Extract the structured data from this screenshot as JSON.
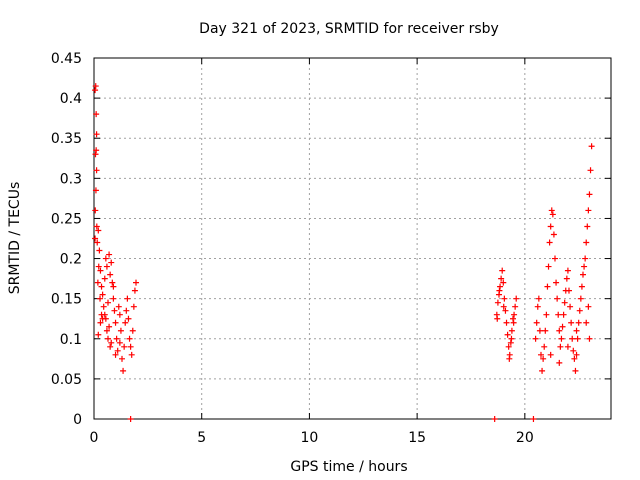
{
  "chart_data": {
    "type": "scatter",
    "title": "Day 321 of 2023, SRMTID for receiver rsby",
    "xlabel": "GPS time / hours",
    "ylabel": "SRMTID / TECUs",
    "xlim": [
      0,
      24
    ],
    "ylim": [
      0,
      0.45
    ],
    "xticks": [
      0,
      5,
      10,
      15,
      20
    ],
    "yticks": [
      0,
      0.05,
      0.1,
      0.15,
      0.2,
      0.25,
      0.3,
      0.35,
      0.4,
      0.45
    ],
    "xtick_labels": [
      "0",
      "5",
      "10",
      "15",
      "20"
    ],
    "ytick_labels": [
      "0",
      "0.05",
      "0.1",
      "0.15",
      "0.2",
      "0.25",
      "0.3",
      "0.35",
      "0.4",
      "0.45"
    ],
    "grid": true,
    "marker": "plus",
    "color": "#ff0000",
    "series": [
      {
        "points": [
          [
            0.05,
            0.41
          ],
          [
            0.08,
            0.415
          ],
          [
            0.1,
            0.38
          ],
          [
            0.12,
            0.355
          ],
          [
            0.1,
            0.335
          ],
          [
            0.07,
            0.33
          ],
          [
            0.12,
            0.31
          ],
          [
            0.09,
            0.285
          ],
          [
            0.06,
            0.26
          ],
          [
            0.13,
            0.24
          ],
          [
            0.05,
            0.225
          ],
          [
            0.15,
            0.22
          ],
          [
            0.2,
            0.235
          ],
          [
            0.25,
            0.21
          ],
          [
            0.22,
            0.19
          ],
          [
            0.3,
            0.185
          ],
          [
            0.18,
            0.17
          ],
          [
            0.35,
            0.165
          ],
          [
            0.28,
            0.15
          ],
          [
            0.4,
            0.155
          ],
          [
            0.45,
            0.14
          ],
          [
            0.5,
            0.13
          ],
          [
            0.3,
            0.12
          ],
          [
            0.55,
            0.125
          ],
          [
            0.6,
            0.11
          ],
          [
            0.2,
            0.105
          ],
          [
            0.65,
            0.1
          ],
          [
            0.7,
            0.115
          ],
          [
            0.75,
            0.09
          ],
          [
            0.8,
            0.095
          ],
          [
            0.55,
            0.2
          ],
          [
            0.6,
            0.19
          ],
          [
            0.7,
            0.205
          ],
          [
            0.75,
            0.18
          ],
          [
            0.8,
            0.195
          ],
          [
            0.85,
            0.17
          ],
          [
            0.9,
            0.15
          ],
          [
            0.95,
            0.135
          ],
          [
            1.0,
            0.12
          ],
          [
            1.05,
            0.1
          ],
          [
            1.1,
            0.085
          ],
          [
            1.15,
            0.14
          ],
          [
            1.2,
            0.13
          ],
          [
            1.25,
            0.11
          ],
          [
            1.3,
            0.075
          ],
          [
            1.35,
            0.06
          ],
          [
            1.4,
            0.09
          ],
          [
            1.45,
            0.12
          ],
          [
            1.5,
            0.135
          ],
          [
            1.55,
            0.15
          ],
          [
            1.6,
            0.125
          ],
          [
            1.65,
            0.1
          ],
          [
            1.7,
            0.09
          ],
          [
            1.75,
            0.08
          ],
          [
            1.8,
            0.11
          ],
          [
            1.85,
            0.14
          ],
          [
            1.9,
            0.16
          ],
          [
            1.95,
            0.17
          ],
          [
            0.4,
            0.125
          ],
          [
            0.9,
            0.165
          ],
          [
            1.0,
            0.08
          ],
          [
            0.35,
            0.13
          ],
          [
            1.2,
            0.095
          ],
          [
            0.65,
            0.145
          ],
          [
            0.5,
            0.175
          ]
        ]
      },
      {
        "points": [
          [
            18.7,
            0.13
          ],
          [
            18.75,
            0.145
          ],
          [
            18.8,
            0.155
          ],
          [
            18.85,
            0.165
          ],
          [
            18.9,
            0.175
          ],
          [
            18.95,
            0.185
          ],
          [
            19.0,
            0.17
          ],
          [
            19.05,
            0.15
          ],
          [
            18.72,
            0.125
          ],
          [
            19.1,
            0.135
          ],
          [
            19.15,
            0.12
          ],
          [
            19.2,
            0.105
          ],
          [
            19.25,
            0.09
          ],
          [
            19.3,
            0.08
          ],
          [
            19.35,
            0.095
          ],
          [
            19.4,
            0.11
          ],
          [
            19.45,
            0.125
          ],
          [
            19.5,
            0.13
          ],
          [
            19.55,
            0.14
          ],
          [
            19.6,
            0.15
          ],
          [
            19.28,
            0.075
          ],
          [
            19.38,
            0.1
          ],
          [
            19.48,
            0.12
          ],
          [
            18.82,
            0.16
          ],
          [
            19.02,
            0.14
          ]
        ]
      },
      {
        "points": [
          [
            20.5,
            0.1
          ],
          [
            20.55,
            0.12
          ],
          [
            20.6,
            0.14
          ],
          [
            20.65,
            0.15
          ],
          [
            20.7,
            0.11
          ],
          [
            20.75,
            0.08
          ],
          [
            20.8,
            0.06
          ],
          [
            20.85,
            0.075
          ],
          [
            20.9,
            0.09
          ],
          [
            20.95,
            0.11
          ],
          [
            21.0,
            0.13
          ],
          [
            21.05,
            0.165
          ],
          [
            21.1,
            0.19
          ],
          [
            21.15,
            0.22
          ],
          [
            21.2,
            0.24
          ],
          [
            21.25,
            0.26
          ],
          [
            21.3,
            0.255
          ],
          [
            21.35,
            0.23
          ],
          [
            21.4,
            0.2
          ],
          [
            21.45,
            0.17
          ],
          [
            21.5,
            0.15
          ],
          [
            21.55,
            0.13
          ],
          [
            21.6,
            0.11
          ],
          [
            21.65,
            0.09
          ],
          [
            21.7,
            0.1
          ],
          [
            21.75,
            0.115
          ],
          [
            21.8,
            0.13
          ],
          [
            21.85,
            0.145
          ],
          [
            21.9,
            0.16
          ],
          [
            21.95,
            0.175
          ],
          [
            22.0,
            0.185
          ],
          [
            22.05,
            0.16
          ],
          [
            22.1,
            0.14
          ],
          [
            22.15,
            0.12
          ],
          [
            22.2,
            0.1
          ],
          [
            22.25,
            0.085
          ],
          [
            22.3,
            0.075
          ],
          [
            22.35,
            0.06
          ],
          [
            22.4,
            0.08
          ],
          [
            22.45,
            0.1
          ],
          [
            22.5,
            0.12
          ],
          [
            22.55,
            0.135
          ],
          [
            22.6,
            0.15
          ],
          [
            22.65,
            0.165
          ],
          [
            22.7,
            0.18
          ],
          [
            22.75,
            0.19
          ],
          [
            22.8,
            0.2
          ],
          [
            22.85,
            0.22
          ],
          [
            22.9,
            0.24
          ],
          [
            22.95,
            0.26
          ],
          [
            23.0,
            0.28
          ],
          [
            23.05,
            0.31
          ],
          [
            23.1,
            0.34
          ],
          [
            21.2,
            0.08
          ],
          [
            21.6,
            0.07
          ],
          [
            22.0,
            0.09
          ],
          [
            22.4,
            0.11
          ],
          [
            23.0,
            0.1
          ],
          [
            22.85,
            0.12
          ],
          [
            22.95,
            0.14
          ]
        ]
      },
      {
        "points": [
          [
            1.7,
            0.0
          ],
          [
            18.6,
            0.0
          ],
          [
            20.4,
            0.0
          ]
        ]
      }
    ]
  }
}
